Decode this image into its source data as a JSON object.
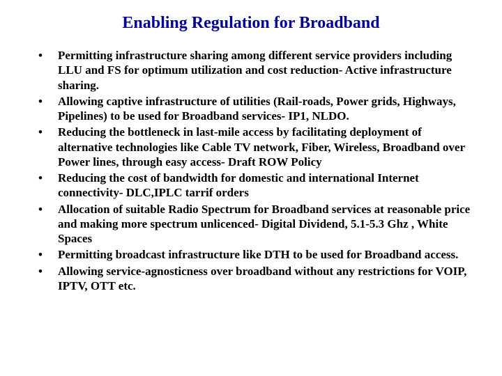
{
  "title": {
    "text": "Enabling Regulation for Broadband",
    "color": "#000099",
    "fontsize": 24
  },
  "body": {
    "color": "#000000",
    "fontsize": 17,
    "lineheight": 1.25
  },
  "background_color": "#ffffff",
  "bullets": [
    "Permitting infrastructure sharing among different service providers including LLU and FS for optimum utilization and cost reduction- Active infrastructure sharing.",
    "Allowing captive infrastructure of utilities (Rail-roads, Power grids, Highways, Pipelines) to be used for Broadband services- IP1, NLDO.",
    "Reducing the bottleneck in last-mile access by facilitating deployment of alternative technologies like Cable TV network, Fiber, Wireless, Broadband over Power lines, through easy access- Draft ROW Policy",
    "Reducing the cost of bandwidth for domestic and international Internet connectivity- DLC,IPLC tarrif orders",
    "Allocation of suitable Radio Spectrum  for Broadband services at reasonable price and making more spectrum unlicenced- Digital Dividend, 5.1-5.3 Ghz , White Spaces",
    "Permitting broadcast infrastructure like DTH to be used for Broadband access.",
    "Allowing service-agnosticness over broadband without any restrictions for VOIP, IPTV, OTT etc."
  ]
}
